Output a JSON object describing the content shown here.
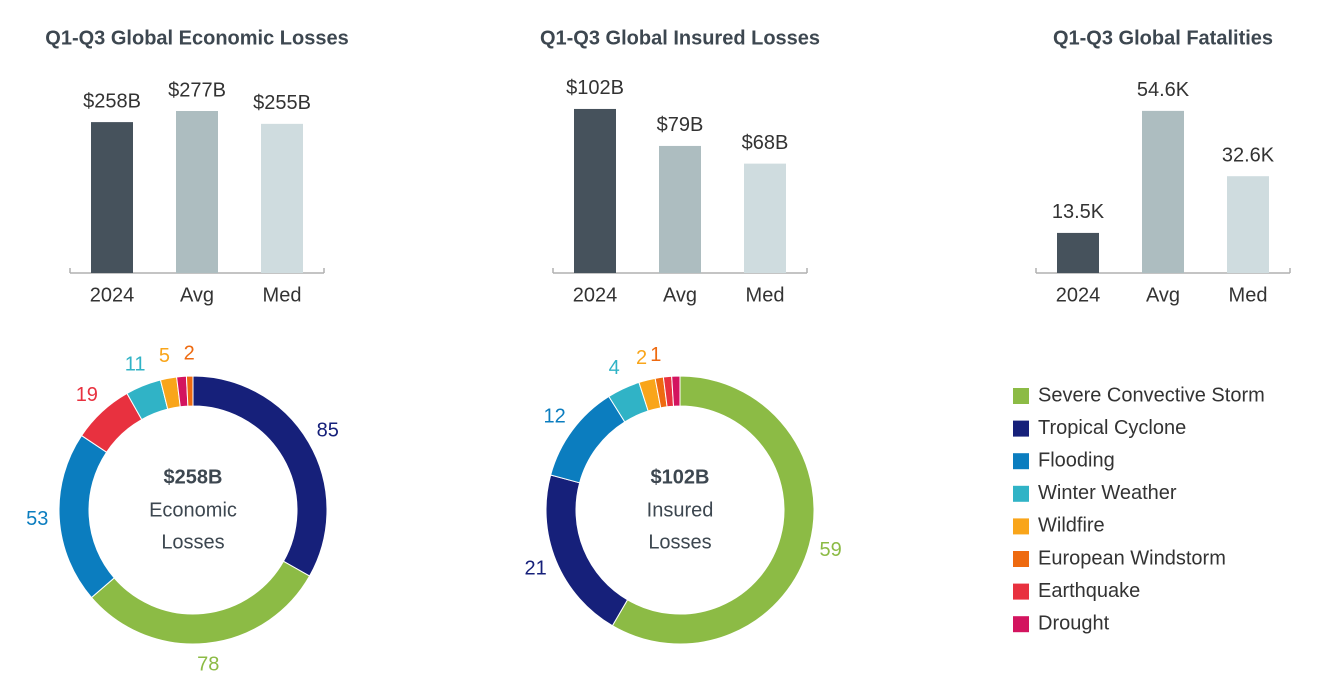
{
  "chart_data": [
    {
      "type": "bar",
      "title": "Q1-Q3 Global Economic Losses",
      "categories": [
        "2024",
        "Avg",
        "Med"
      ],
      "values": [
        258,
        277,
        255
      ],
      "value_labels": [
        "$258B",
        "$277B",
        "$255B"
      ],
      "colors": [
        "#46525c",
        "#adbdc0",
        "#cfdcdf"
      ],
      "ylim": [
        0,
        330
      ]
    },
    {
      "type": "bar",
      "title": "Q1-Q3 Global Insured Losses",
      "categories": [
        "2024",
        "Avg",
        "Med"
      ],
      "values": [
        102,
        79,
        68
      ],
      "value_labels": [
        "$102B",
        "$79B",
        "$68B"
      ],
      "colors": [
        "#46525c",
        "#adbdc0",
        "#cfdcdf"
      ],
      "ylim": [
        0,
        120
      ]
    },
    {
      "type": "bar",
      "title": "Q1-Q3 Global Fatalities",
      "categories": [
        "2024",
        "Avg",
        "Med"
      ],
      "values": [
        13.5,
        54.6,
        32.6
      ],
      "value_labels": [
        "13.5K",
        "54.6K",
        "32.6K"
      ],
      "colors": [
        "#46525c",
        "#adbdc0",
        "#cfdcdf"
      ],
      "ylim": [
        0,
        65
      ]
    },
    {
      "type": "donut",
      "center_value": "$258B",
      "center_label": [
        "Economic",
        "Losses"
      ],
      "categories": [
        "Tropical Cyclone",
        "Severe Convective Storm",
        "Flooding",
        "Earthquake",
        "Winter Weather",
        "Wildfire",
        "Drought",
        "European Windstorm"
      ],
      "values": [
        85,
        78,
        53,
        19,
        11,
        5,
        3,
        2
      ],
      "value_labels": [
        "85",
        "78",
        "53",
        "19",
        "11",
        "5",
        null,
        "2"
      ]
    },
    {
      "type": "donut",
      "center_value": "$102B",
      "center_label": [
        "Insured",
        "Losses"
      ],
      "categories": [
        "Severe Convective Storm",
        "Tropical Cyclone",
        "Flooding",
        "Winter Weather",
        "Wildfire",
        "European Windstorm",
        "Earthquake",
        "Drought"
      ],
      "values": [
        59,
        21,
        12,
        4,
        2,
        1,
        1,
        1
      ],
      "value_labels": [
        "59",
        "21",
        "12",
        "4",
        "2",
        "1",
        null,
        null
      ]
    }
  ],
  "legend": [
    {
      "name": "Severe Convective Storm",
      "color": "#8cbb45"
    },
    {
      "name": "Tropical Cyclone",
      "color": "#16207a"
    },
    {
      "name": "Flooding",
      "color": "#0b7dbf"
    },
    {
      "name": "Winter Weather",
      "color": "#30b3c6"
    },
    {
      "name": "Wildfire",
      "color": "#f9a51a"
    },
    {
      "name": "European Windstorm",
      "color": "#ee6a10"
    },
    {
      "name": "Earthquake",
      "color": "#e8313f"
    },
    {
      "name": "Drought",
      "color": "#d3145f"
    }
  ]
}
